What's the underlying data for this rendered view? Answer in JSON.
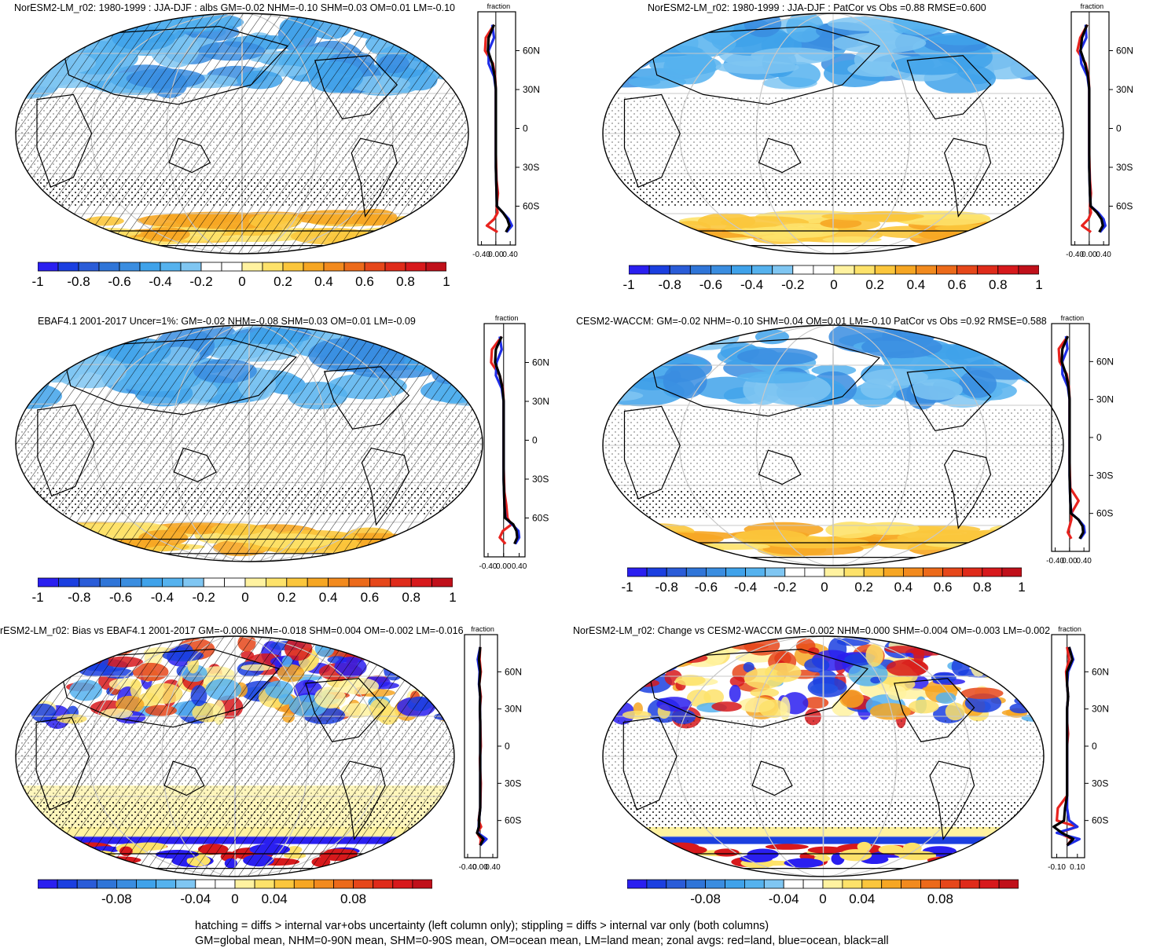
{
  "footer": {
    "line1": "hatching = diffs > internal var+obs uncertainty (left column only); stippling = diffs > internal var only (both columns)",
    "line2": "GM=global mean, NHM=0-90N mean, SHM=0-90S mean, OM=ocean mean, LM=land mean; zonal avgs: red=land, blue=ocean, black=all"
  },
  "colors": {
    "land": "#e8231e",
    "ocean": "#1f2ee8",
    "all": "#000000",
    "colorbar": [
      "#2a1ff0",
      "#1b3fe0",
      "#2a5cd8",
      "#2f75d8",
      "#3a8de0",
      "#3fa2ea",
      "#55b2ee",
      "#7fc6f2",
      "#ffffff",
      "#ffffff",
      "#fff2a0",
      "#fde26a",
      "#fbc63c",
      "#f6a623",
      "#f28a1e",
      "#ec6a1a",
      "#e6471a",
      "#df2b1a",
      "#d7191c",
      "#c0101a"
    ]
  },
  "panels": [
    {
      "title": "NorESM2-LM_r02: 1980-1999 : JJA-DJF : albs GM=-0.02 NHM=-0.10 SHM=0.03 OM=0.01 LM=-0.10",
      "cbar_labels": [
        "-1",
        "-0.8",
        "-0.6",
        "-0.4",
        "-0.2",
        "0",
        "0.2",
        "0.4",
        "0.6",
        "0.8",
        "1"
      ],
      "zonal_xticks": [
        "-0.40",
        "0.00",
        "0.40"
      ]
    },
    {
      "title": "NorESM2-LM_r02: 1980-1999 : JJA-DJF : PatCor vs Obs =0.88 RMSE=0.600",
      "cbar_labels": [
        "-1",
        "-0.8",
        "-0.6",
        "-0.4",
        "-0.2",
        "0",
        "0.2",
        "0.4",
        "0.6",
        "0.8",
        "1"
      ],
      "zonal_xticks": [
        "-0.40",
        "0.00",
        "0.40"
      ]
    },
    {
      "title": "EBAF4.1 2001-2017 Uncer=1%: GM=-0.02 NHM=-0.08 SHM=0.03 OM=0.01 LM=-0.09",
      "cbar_labels": [
        "-1",
        "-0.8",
        "-0.6",
        "-0.4",
        "-0.2",
        "0",
        "0.2",
        "0.4",
        "0.6",
        "0.8",
        "1"
      ],
      "zonal_xticks": [
        "-0.40",
        "0.00",
        "0.40"
      ]
    },
    {
      "title": "CESM2-WACCM: GM=-0.02 NHM=-0.10 SHM=0.04 OM=0.01 LM=-0.10 PatCor vs Obs =0.92 RMSE=0.588",
      "cbar_labels": [
        "-1",
        "-0.8",
        "-0.6",
        "-0.4",
        "-0.2",
        "0",
        "0.2",
        "0.4",
        "0.6",
        "0.8",
        "1"
      ],
      "zonal_xticks": [
        "-0.40",
        "0.00",
        "0.40"
      ]
    },
    {
      "title": "rESM2-LM_r02: Bias vs EBAF4.1 2001-2017 GM=-0.006 NHM=-0.018 SHM=0.004 OM=-0.002 LM=-0.016",
      "cbar_labels": [
        "-0.08",
        "-0.04",
        "0",
        "0.04",
        "0.08"
      ],
      "zonal_xticks": [
        "-0.40",
        "0.00",
        "0.40"
      ]
    },
    {
      "title": "NorESM2-LM_r02: Change vs CESM2-WACCM GM=-0.002 NHM=0.000 SHM=-0.004 OM=-0.003 LM=-0.002",
      "cbar_labels": [
        "-0.08",
        "-0.04",
        "0",
        "0.04",
        "0.08"
      ],
      "zonal_xticks": [
        "-0.10",
        "0.10"
      ]
    }
  ],
  "zonal_common": {
    "axis_label": "fraction",
    "lat_labels": [
      "60N",
      "30N",
      "0",
      "30S",
      "60S"
    ]
  },
  "chart_data": [
    {
      "type": "heatmap",
      "title": "NorESM2-LM_r02: 1980-1999 : JJA-DJF : albs GM=-0.02 NHM=-0.10 SHM=0.03 OM=0.01 LM=-0.10",
      "colorbar": [
        -1,
        -0.8,
        -0.6,
        -0.4,
        -0.2,
        0,
        0.2,
        0.4,
        0.6,
        0.8,
        1
      ],
      "hatching": true,
      "stippling": true,
      "zonal": {
        "xlabel": "fraction",
        "xlim": [
          -0.5,
          0.55
        ],
        "lat": [
          80,
          70,
          60,
          50,
          40,
          30,
          20,
          10,
          0,
          -10,
          -20,
          -30,
          -40,
          -50,
          -60,
          -65,
          -70,
          -75,
          -80
        ],
        "series": [
          {
            "name": "land",
            "values": [
              -0.05,
              -0.28,
              -0.3,
              -0.08,
              -0.02,
              0.0,
              0.0,
              0.0,
              0.0,
              0.0,
              0.0,
              0.01,
              0.02,
              0.06,
              0.02,
              0.05,
              -0.05,
              -0.25,
              0.05
            ]
          },
          {
            "name": "ocean",
            "values": [
              -0.1,
              -0.05,
              -0.2,
              -0.2,
              -0.05,
              0.0,
              0.0,
              0.0,
              0.0,
              0.0,
              0.0,
              0.0,
              0.01,
              0.02,
              0.03,
              0.2,
              0.36,
              0.45,
              0.3
            ]
          },
          {
            "name": "all",
            "values": [
              -0.05,
              -0.2,
              -0.22,
              -0.1,
              -0.03,
              0.0,
              0.0,
              0.0,
              0.0,
              0.0,
              0.0,
              0.0,
              0.01,
              0.02,
              0.03,
              0.2,
              0.32,
              0.38,
              0.28
            ]
          }
        ]
      }
    },
    {
      "type": "heatmap",
      "title": "NorESM2-LM_r02: 1980-1999 : JJA-DJF : PatCor vs Obs =0.88 RMSE=0.600",
      "colorbar": [
        -1,
        -0.8,
        -0.6,
        -0.4,
        -0.2,
        0,
        0.2,
        0.4,
        0.6,
        0.8,
        1
      ],
      "hatching": false,
      "stippling": true,
      "zonal": {
        "xlabel": "fraction",
        "xlim": [
          -0.5,
          0.55
        ],
        "lat": [
          80,
          70,
          60,
          50,
          40,
          30,
          20,
          10,
          0,
          -10,
          -20,
          -30,
          -40,
          -50,
          -60,
          -65,
          -70,
          -75,
          -80
        ],
        "series": [
          {
            "name": "land",
            "values": [
              -0.05,
              -0.25,
              -0.33,
              -0.1,
              -0.02,
              0.0,
              0.0,
              0.0,
              0.0,
              0.0,
              0.0,
              0.01,
              0.02,
              0.05,
              0.02,
              0.05,
              -0.02,
              -0.2,
              0.05
            ]
          },
          {
            "name": "ocean",
            "values": [
              -0.1,
              -0.08,
              -0.25,
              -0.22,
              -0.05,
              0.0,
              0.0,
              0.0,
              0.0,
              0.0,
              0.0,
              0.0,
              0.01,
              0.02,
              0.04,
              0.25,
              0.4,
              0.45,
              0.3
            ]
          },
          {
            "name": "all",
            "values": [
              -0.06,
              -0.2,
              -0.24,
              -0.12,
              -0.03,
              0.0,
              0.0,
              0.0,
              0.0,
              0.0,
              0.0,
              0.0,
              0.01,
              0.02,
              0.04,
              0.22,
              0.34,
              0.38,
              0.28
            ]
          }
        ]
      }
    },
    {
      "type": "heatmap",
      "title": "EBAF4.1 2001-2017 Uncer=1%: GM=-0.02 NHM=-0.08 SHM=0.03 OM=0.01 LM=-0.09",
      "colorbar": [
        -1,
        -0.8,
        -0.6,
        -0.4,
        -0.2,
        0,
        0.2,
        0.4,
        0.6,
        0.8,
        1
      ],
      "hatching": true,
      "stippling": true,
      "zonal": {
        "xlabel": "fraction",
        "xlim": [
          -0.5,
          0.55
        ],
        "lat": [
          80,
          70,
          60,
          50,
          40,
          30,
          20,
          10,
          0,
          -10,
          -20,
          -30,
          -40,
          -50,
          -60,
          -65,
          -70,
          -75,
          -80
        ],
        "series": [
          {
            "name": "land",
            "values": [
              -0.05,
              -0.3,
              -0.32,
              -0.1,
              -0.02,
              0.0,
              0.0,
              0.0,
              0.0,
              0.0,
              0.0,
              0.01,
              0.02,
              0.07,
              0.1,
              0.2,
              -0.02,
              -0.1,
              0.05
            ]
          },
          {
            "name": "ocean",
            "values": [
              -0.1,
              -0.05,
              -0.18,
              -0.2,
              -0.05,
              0.0,
              0.0,
              0.0,
              0.0,
              0.0,
              0.0,
              0.0,
              0.01,
              0.02,
              0.05,
              0.22,
              0.38,
              0.4,
              0.3
            ]
          },
          {
            "name": "all",
            "values": [
              -0.05,
              -0.2,
              -0.22,
              -0.1,
              -0.03,
              0.0,
              0.0,
              0.0,
              0.0,
              0.0,
              0.0,
              0.0,
              0.01,
              0.02,
              0.04,
              0.25,
              0.33,
              0.35,
              0.28
            ]
          }
        ]
      }
    },
    {
      "type": "heatmap",
      "title": "CESM2-WACCM: GM=-0.02 NHM=-0.10 SHM=0.04 OM=0.01 LM=-0.10 PatCor vs Obs =0.92 RMSE=0.588",
      "colorbar": [
        -1,
        -0.8,
        -0.6,
        -0.4,
        -0.2,
        0,
        0.2,
        0.4,
        0.6,
        0.8,
        1
      ],
      "hatching": false,
      "stippling": true,
      "zonal": {
        "xlabel": "fraction",
        "xlim": [
          -0.5,
          0.55
        ],
        "lat": [
          80,
          70,
          60,
          50,
          40,
          30,
          20,
          10,
          0,
          -10,
          -20,
          -30,
          -40,
          -50,
          -60,
          -65,
          -70,
          -75,
          -80
        ],
        "series": [
          {
            "name": "land",
            "values": [
              -0.05,
              -0.3,
              -0.28,
              -0.08,
              -0.02,
              0.0,
              0.0,
              0.0,
              0.0,
              0.0,
              0.0,
              0.01,
              0.02,
              0.25,
              0.05,
              0.05,
              0.0,
              -0.05,
              0.05
            ]
          },
          {
            "name": "ocean",
            "values": [
              -0.1,
              -0.06,
              -0.2,
              -0.2,
              -0.05,
              0.0,
              0.0,
              0.0,
              0.0,
              0.0,
              0.0,
              0.0,
              0.01,
              0.02,
              0.05,
              0.25,
              0.4,
              0.42,
              0.3
            ]
          },
          {
            "name": "all",
            "values": [
              -0.05,
              -0.2,
              -0.22,
              -0.1,
              -0.03,
              0.0,
              0.0,
              0.0,
              0.0,
              0.0,
              0.0,
              0.0,
              0.01,
              0.02,
              0.04,
              0.25,
              0.36,
              0.38,
              0.28
            ]
          }
        ]
      }
    },
    {
      "type": "heatmap",
      "title": "rESM2-LM_r02: Bias vs EBAF4.1 2001-2017 GM=-0.006 NHM=-0.018 SHM=0.004 OM=-0.002 LM=-0.016",
      "colorbar": [
        -0.08,
        -0.04,
        0,
        0.04,
        0.08
      ],
      "hatching": true,
      "stippling": true,
      "zonal": {
        "xlabel": "fraction",
        "xlim": [
          -0.5,
          0.55
        ],
        "lat": [
          80,
          70,
          60,
          50,
          40,
          30,
          20,
          10,
          0,
          -10,
          -20,
          -30,
          -40,
          -50,
          -60,
          -65,
          -70,
          -75,
          -80
        ],
        "series": [
          {
            "name": "land",
            "values": [
              0.0,
              -0.02,
              0.02,
              -0.03,
              0.02,
              -0.01,
              0.0,
              0.01,
              0.02,
              -0.01,
              0.0,
              0.02,
              0.01,
              0.0,
              -0.05,
              0.03,
              -0.1,
              0.02,
              0.0
            ]
          },
          {
            "name": "ocean",
            "values": [
              0.0,
              -0.08,
              -0.02,
              -0.04,
              0.0,
              -0.01,
              0.0,
              0.0,
              0.0,
              0.0,
              0.0,
              0.0,
              0.0,
              0.0,
              -0.04,
              -0.05,
              -0.08,
              0.2,
              0.0
            ]
          },
          {
            "name": "all",
            "values": [
              0.0,
              -0.04,
              0.0,
              -0.03,
              0.0,
              -0.01,
              0.0,
              0.0,
              0.0,
              0.0,
              0.0,
              0.0,
              0.0,
              0.0,
              -0.04,
              -0.04,
              -0.1,
              0.1,
              0.0
            ]
          }
        ]
      }
    },
    {
      "type": "heatmap",
      "title": "NorESM2-LM_r02: Change vs CESM2-WACCM GM=-0.002 NHM=0.000 SHM=-0.004 OM=-0.003 LM=-0.002",
      "colorbar": [
        -0.08,
        -0.04,
        0,
        0.04,
        0.08
      ],
      "hatching": false,
      "stippling": true,
      "zonal": {
        "xlabel": "fraction",
        "xlim": [
          -0.15,
          0.17
        ],
        "lat": [
          80,
          70,
          60,
          50,
          40,
          30,
          20,
          10,
          0,
          -10,
          -20,
          -30,
          -40,
          -50,
          -60,
          -65,
          -70,
          -75,
          -80
        ],
        "series": [
          {
            "name": "land",
            "values": [
              0.0,
              0.02,
              -0.01,
              0.0,
              0.01,
              0.0,
              0.0,
              0.01,
              0.0,
              0.0,
              0.0,
              0.0,
              0.0,
              -0.09,
              -0.1,
              0.1,
              -0.08,
              0.05,
              0.0
            ]
          },
          {
            "name": "ocean",
            "values": [
              0.02,
              0.06,
              0.01,
              0.0,
              0.01,
              0.0,
              0.0,
              0.0,
              0.0,
              0.0,
              0.0,
              0.0,
              0.0,
              0.0,
              0.02,
              0.1,
              -0.1,
              0.12,
              0.0
            ]
          },
          {
            "name": "all",
            "values": [
              0.02,
              0.05,
              0.0,
              0.0,
              0.01,
              0.0,
              0.0,
              0.0,
              0.0,
              0.0,
              0.0,
              0.0,
              0.0,
              -0.02,
              -0.03,
              -0.13,
              -0.05,
              0.06,
              0.0
            ]
          }
        ]
      }
    }
  ]
}
